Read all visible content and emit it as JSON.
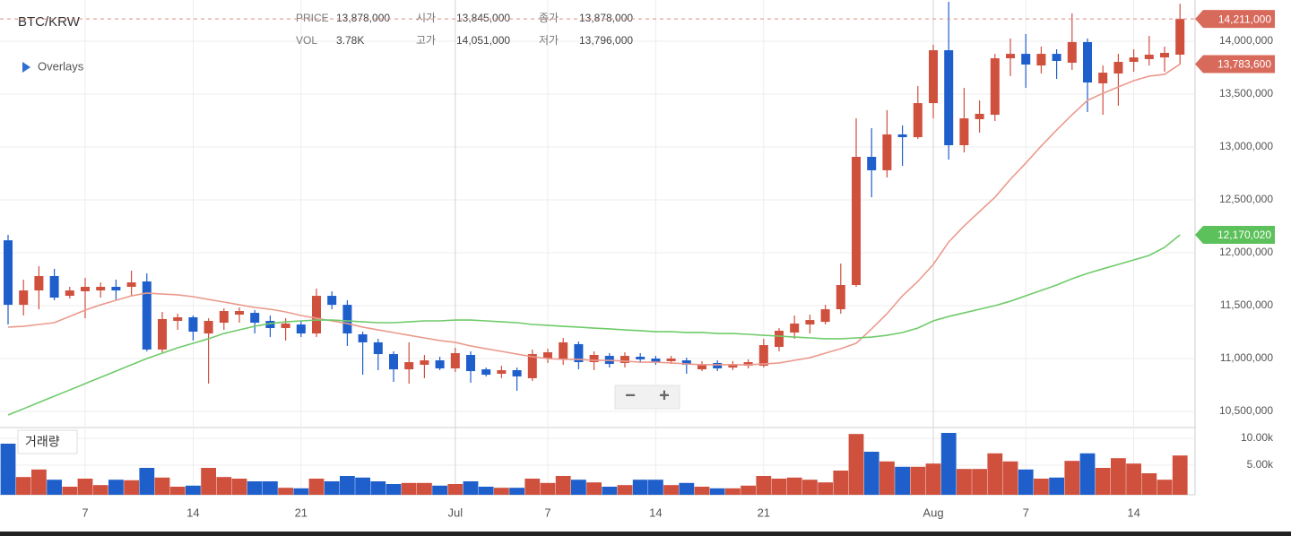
{
  "chart_data": {
    "type": "candlestick",
    "title": "BTC/KRW",
    "info": [
      {
        "label": "PRICE",
        "value": "13,878,000"
      },
      {
        "label": "시가",
        "value": "13,845,000"
      },
      {
        "label": "종가",
        "value": "13,878,000"
      },
      {
        "label": "VOL",
        "value": "3.78K"
      },
      {
        "label": "고가",
        "value": "14,051,000"
      },
      {
        "label": "저가",
        "value": "13,796,000"
      }
    ],
    "overlays_label": "Overlays",
    "zoom": [
      "−",
      "+"
    ],
    "up_color": "#d0503e",
    "down_color": "#1f5fcb",
    "grid": true,
    "categories": [
      null,
      null,
      null,
      null,
      null,
      "7",
      null,
      null,
      null,
      null,
      null,
      null,
      "14",
      null,
      null,
      null,
      null,
      null,
      null,
      "21",
      null,
      null,
      null,
      null,
      null,
      null,
      null,
      null,
      null,
      "Jul",
      null,
      null,
      null,
      null,
      null,
      "7",
      null,
      null,
      null,
      null,
      null,
      null,
      "14",
      null,
      null,
      null,
      null,
      null,
      null,
      "21",
      null,
      null,
      null,
      null,
      null,
      null,
      null,
      null,
      null,
      null,
      "Aug",
      null,
      null,
      null,
      null,
      null,
      "7",
      null,
      null,
      null,
      null,
      null,
      null,
      "14",
      null,
      null,
      null
    ],
    "open": [
      12118000,
      11508000,
      11644000,
      11780000,
      11593000,
      11636000,
      11644000,
      11678000,
      11678000,
      11729000,
      11085000,
      11356000,
      11390000,
      11237000,
      11339000,
      11415000,
      11432000,
      11356000,
      11288000,
      11322000,
      11237000,
      11593000,
      11508000,
      11229000,
      11153000,
      11042000,
      10898000,
      10941000,
      10983000,
      10907000,
      11034000,
      10898000,
      10856000,
      10890000,
      10814000,
      11000000,
      10992000,
      11136000,
      10966000,
      11025000,
      10958000,
      11017000,
      11000000,
      10975000,
      10983000,
      10898000,
      10958000,
      10915000,
      10932000,
      10932000,
      11110000,
      11246000,
      11322000,
      11347000,
      11466000,
      11695000,
      12907000,
      12780000,
      13119000,
      13093000,
      13415000,
      13915000,
      13017000,
      13263000,
      13305000,
      13839000,
      13881000,
      13771000,
      13881000,
      13797000,
      13992000,
      13602000,
      13695000,
      13805000,
      13831000,
      13847000,
      13873000
    ],
    "high": [
      12169000,
      11746000,
      11873000,
      11848000,
      11678000,
      11763000,
      11720000,
      11746000,
      11831000,
      11805000,
      11441000,
      11424000,
      11407000,
      11381000,
      11475000,
      11483000,
      11458000,
      11407000,
      11381000,
      11356000,
      11661000,
      11636000,
      11551000,
      11254000,
      11187000,
      11068000,
      11153000,
      11034000,
      11017000,
      11102000,
      11068000,
      10915000,
      10932000,
      10915000,
      11085000,
      11093000,
      11195000,
      11161000,
      11068000,
      11051000,
      11059000,
      11051000,
      11025000,
      11025000,
      11008000,
      10975000,
      10983000,
      10975000,
      10992000,
      11187000,
      11288000,
      11407000,
      11415000,
      11508000,
      11898000,
      13271000,
      13178000,
      13348000,
      13204000,
      13576000,
      13966000,
      14373000,
      13559000,
      13441000,
      13881000,
      14026000,
      14068000,
      13949000,
      13924000,
      14263000,
      14026000,
      13771000,
      13881000,
      13924000,
      14051000,
      13949000,
      14355000
    ],
    "low": [
      11322000,
      11407000,
      11466000,
      11551000,
      11568000,
      11381000,
      11576000,
      11551000,
      11593000,
      11068000,
      11059000,
      11271000,
      11170000,
      10763000,
      11271000,
      11339000,
      11237000,
      11203000,
      11170000,
      11203000,
      11203000,
      11466000,
      11119000,
      10847000,
      10890000,
      10780000,
      10763000,
      10814000,
      10890000,
      10873000,
      10771000,
      10830000,
      10814000,
      10695000,
      10788000,
      10958000,
      10941000,
      10898000,
      10890000,
      10915000,
      10915000,
      10958000,
      10941000,
      10949000,
      10856000,
      10881000,
      10881000,
      10890000,
      10907000,
      10915000,
      11068000,
      11187000,
      11237000,
      11322000,
      11424000,
      11678000,
      12525000,
      12712000,
      12822000,
      13076000,
      13271000,
      12881000,
      12949000,
      13136000,
      13246000,
      13670000,
      13559000,
      13695000,
      13644000,
      13729000,
      13331000,
      13305000,
      13390000,
      13712000,
      13771000,
      13712000,
      13780000
    ],
    "close": [
      11508000,
      11644000,
      11780000,
      11576000,
      11644000,
      11678000,
      11678000,
      11644000,
      11720000,
      11085000,
      11373000,
      11390000,
      11254000,
      11356000,
      11449000,
      11449000,
      11339000,
      11288000,
      11331000,
      11237000,
      11593000,
      11508000,
      11237000,
      11153000,
      11042000,
      10898000,
      10966000,
      10983000,
      10907000,
      11051000,
      10881000,
      10847000,
      10890000,
      10831000,
      11042000,
      11059000,
      11153000,
      10966000,
      11034000,
      10949000,
      11025000,
      10992000,
      10966000,
      11000000,
      10941000,
      10949000,
      10907000,
      10949000,
      10966000,
      11127000,
      11263000,
      11331000,
      11364000,
      11466000,
      11695000,
      12907000,
      12780000,
      13119000,
      13093000,
      13415000,
      13915000,
      13017000,
      13271000,
      13314000,
      13839000,
      13881000,
      13780000,
      13881000,
      13814000,
      13992000,
      13610000,
      13703000,
      13805000,
      13847000,
      13873000,
      13890000,
      14211000
    ],
    "last_close_label": "14,211,000",
    "ylim": [
      10356000,
      14390000
    ],
    "yticks": [
      {
        "value": 10500000,
        "label": "10,500,000"
      },
      {
        "value": 11000000,
        "label": "11,000,000"
      },
      {
        "value": 11500000,
        "label": "11,500,000"
      },
      {
        "value": 12000000,
        "label": "12,000,000"
      },
      {
        "value": 12500000,
        "label": "12,500,000"
      },
      {
        "value": 13000000,
        "label": "13,000,000"
      },
      {
        "value": 13500000,
        "label": "13,500,000"
      },
      {
        "value": 14000000,
        "label": "14,000,000"
      }
    ],
    "lines": [
      {
        "color": "#eb9a8d",
        "last_label": "13,783,600",
        "values": [
          11297000,
          11305000,
          11322000,
          11339000,
          11398000,
          11458000,
          11508000,
          11551000,
          11593000,
          11619000,
          11610000,
          11602000,
          11585000,
          11559000,
          11534000,
          11508000,
          11483000,
          11466000,
          11441000,
          11407000,
          11381000,
          11356000,
          11331000,
          11297000,
          11271000,
          11246000,
          11220000,
          11195000,
          11170000,
          11153000,
          11119000,
          11093000,
          11068000,
          11042000,
          11017000,
          11000000,
          10992000,
          10992000,
          10983000,
          10983000,
          10975000,
          10966000,
          10966000,
          10958000,
          10949000,
          10941000,
          10941000,
          10941000,
          10941000,
          10949000,
          10958000,
          10983000,
          11008000,
          11051000,
          11093000,
          11144000,
          11280000,
          11424000,
          11593000,
          11729000,
          11890000,
          12102000,
          12254000,
          12390000,
          12525000,
          12695000,
          12848000,
          13009000,
          13161000,
          13305000,
          13441000,
          13508000,
          13568000,
          13627000,
          13670000,
          13687000,
          13783600
        ]
      },
      {
        "color": "#6fcb6a",
        "last_label": "12,170,020",
        "values": [
          10466000,
          10525000,
          10585000,
          10644000,
          10703000,
          10763000,
          10822000,
          10881000,
          10941000,
          11000000,
          11051000,
          11102000,
          11144000,
          11187000,
          11237000,
          11271000,
          11305000,
          11331000,
          11347000,
          11356000,
          11364000,
          11364000,
          11356000,
          11347000,
          11339000,
          11339000,
          11347000,
          11356000,
          11356000,
          11364000,
          11364000,
          11356000,
          11347000,
          11339000,
          11322000,
          11314000,
          11305000,
          11297000,
          11288000,
          11280000,
          11271000,
          11263000,
          11254000,
          11254000,
          11246000,
          11246000,
          11237000,
          11237000,
          11229000,
          11220000,
          11212000,
          11203000,
          11195000,
          11187000,
          11187000,
          11195000,
          11203000,
          11220000,
          11246000,
          11288000,
          11356000,
          11398000,
          11432000,
          11466000,
          11500000,
          11542000,
          11593000,
          11644000,
          11695000,
          11754000,
          11805000,
          11848000,
          11890000,
          11932000,
          11975000,
          12051000,
          12170020
        ]
      }
    ],
    "volume": {
      "label": "거래량",
      "values": [
        9000,
        2800,
        4200,
        2300,
        1000,
        2500,
        1300,
        2300,
        2200,
        4500,
        2700,
        1000,
        1200,
        4500,
        2800,
        2500,
        2000,
        2000,
        800,
        700,
        2500,
        2000,
        3000,
        2700,
        2000,
        1500,
        1700,
        1700,
        1200,
        1500,
        2000,
        1000,
        800,
        800,
        2500,
        1700,
        3000,
        2300,
        1800,
        1000,
        1300,
        2300,
        2300,
        1300,
        1700,
        1000,
        700,
        700,
        1200,
        3000,
        2500,
        2700,
        2300,
        1800,
        4000,
        10800,
        7500,
        5700,
        4700,
        4700,
        5300,
        11000,
        4300,
        4300,
        7200,
        5700,
        4200,
        2500,
        2700,
        5800,
        7200,
        4500,
        6300,
        5300,
        3500,
        2300,
        6800
      ],
      "ylim": [
        0,
        11830
      ],
      "yticks": [
        {
          "value": 5000,
          "label": "5.00k"
        },
        {
          "value": 10000,
          "label": "10.00k"
        }
      ]
    }
  }
}
